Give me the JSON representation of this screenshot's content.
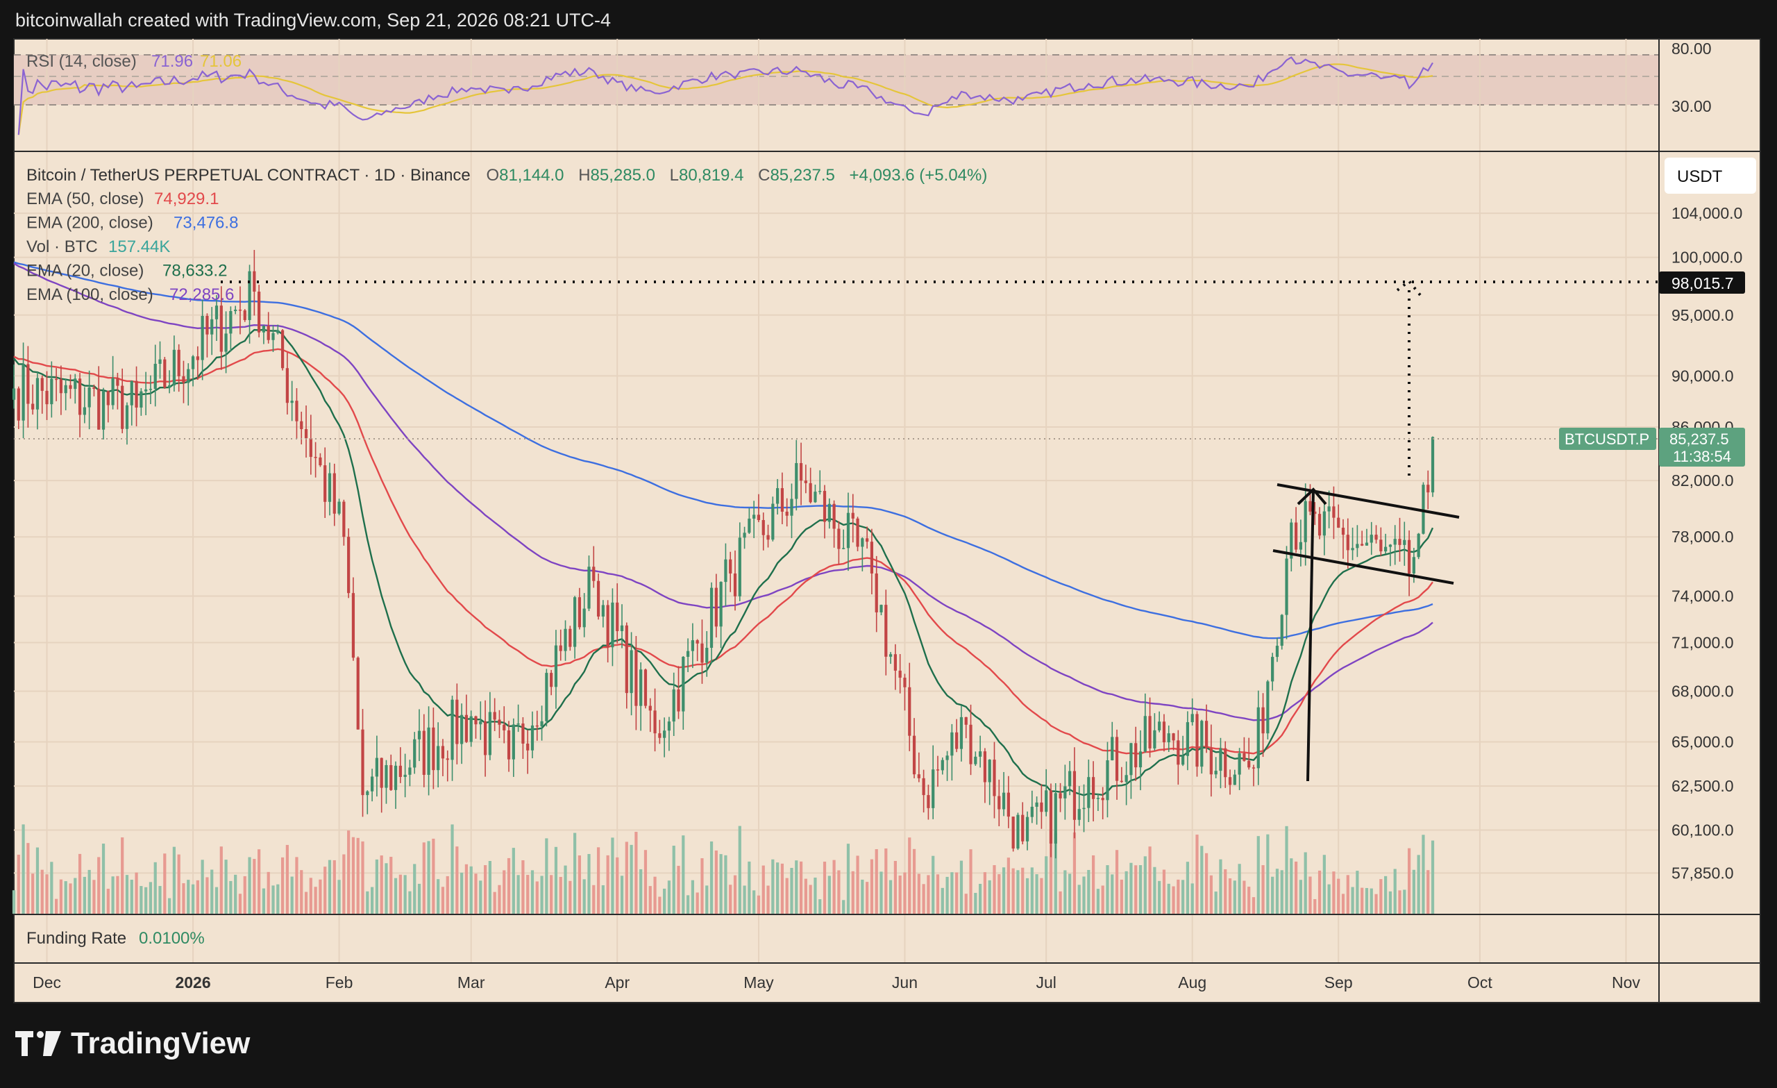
{
  "header": {
    "caption": "bitcoinwallah created with TradingView.com, Sep 21, 2026 08:21 UTC-4"
  },
  "colors": {
    "panel_bg": "#f2e3d1",
    "frame": "#141414",
    "up": "#3e8e6c",
    "down": "#c24545",
    "vol_up": "#8fc0a8",
    "vol_down": "#e79a91",
    "ema20": "#1e6f4c",
    "ema50": "#e2494b",
    "ema100": "#7e44c2",
    "ema200": "#3d6fe0",
    "rsi": "#8a63d2",
    "rsi_ma": "#e5c53a",
    "price_tag": "#5da27f"
  },
  "rsi_panel": {
    "label": "RSI (14, close)",
    "value": "71.96",
    "ma_value": "71.06",
    "levels": [
      "80.00",
      "30.00"
    ]
  },
  "main_panel": {
    "symbol_line": "Bitcoin / TetherUS PERPETUAL CONTRACT · 1D · Binance",
    "ohlc": [
      {
        "k": "O",
        "v": "81,144.0"
      },
      {
        "k": "H",
        "v": "85,285.0"
      },
      {
        "k": "L",
        "v": "80,819.4"
      },
      {
        "k": "C",
        "v": "85,237.5"
      }
    ],
    "change": "+4,093.6 (+5.04%)",
    "legend": [
      {
        "label": "EMA (50, close)",
        "value": "74,929.1",
        "color": "#e2494b"
      },
      {
        "label": "EMA (200, close)",
        "value": "73,476.8",
        "color": "#3d6fe0"
      },
      {
        "label": "Vol · BTC",
        "value": "157.44K",
        "color": "#3aa59b"
      },
      {
        "label": "EMA (20, close)",
        "value": "78,633.2",
        "color": "#1e6f4c"
      },
      {
        "label": "EMA (100, close)",
        "value": "72,285.6",
        "color": "#7e44c2"
      }
    ],
    "currency_button": "USDT",
    "price_axis_labels": [
      "104,000.0",
      "100,000.0",
      "95,000.0",
      "90,000.0",
      "86,000.0",
      "82,000.0",
      "78,000.0",
      "74,000.0",
      "71,000.0",
      "68,000.0",
      "65,000.0",
      "62,500.0",
      "60,100.0",
      "57,850.0"
    ],
    "target_label": "98,015.7",
    "symbol_tag": "BTCUSDT.P",
    "last_price": "85,237.5",
    "countdown": "11:38:54"
  },
  "funding_panel": {
    "label": "Funding Rate",
    "value": "0.0100%"
  },
  "time_axis": [
    {
      "label": "Dec",
      "bold": false
    },
    {
      "label": "2026",
      "bold": true
    },
    {
      "label": "Feb",
      "bold": false
    },
    {
      "label": "Mar",
      "bold": false
    },
    {
      "label": "Apr",
      "bold": false
    },
    {
      "label": "May",
      "bold": false
    },
    {
      "label": "Jun",
      "bold": false
    },
    {
      "label": "Jul",
      "bold": false
    },
    {
      "label": "Aug",
      "bold": false
    },
    {
      "label": "Sep",
      "bold": false
    },
    {
      "label": "Oct",
      "bold": false
    },
    {
      "label": "Nov",
      "bold": false
    }
  ],
  "brand": {
    "name": "TradingView"
  },
  "chart_data": {
    "type": "candlestick",
    "title": "Bitcoin / TetherUS PERPETUAL CONTRACT · 1D · Binance",
    "y_scale": "log",
    "ylim": [
      56000,
      108000
    ],
    "x_range": [
      "2025-11-24",
      "2026-11-08"
    ],
    "key_points": [
      {
        "date": "2025-11-24",
        "close": 89000
      },
      {
        "date": "2025-12-20",
        "close": 87500
      },
      {
        "date": "2026-01-14",
        "close": 97000
      },
      {
        "date": "2026-02-02",
        "close": 78000
      },
      {
        "date": "2026-02-06",
        "close": 62000
      },
      {
        "date": "2026-03-01",
        "close": 66500
      },
      {
        "date": "2026-03-09",
        "close": 64000
      },
      {
        "date": "2026-03-27",
        "close": 75000
      },
      {
        "date": "2026-04-09",
        "close": 65500
      },
      {
        "date": "2026-04-25",
        "close": 75500
      },
      {
        "date": "2026-05-10",
        "close": 82000
      },
      {
        "date": "2026-05-25",
        "close": 75500
      },
      {
        "date": "2026-06-05",
        "close": 62000
      },
      {
        "date": "2026-06-14",
        "close": 66000
      },
      {
        "date": "2026-06-26",
        "close": 59500
      },
      {
        "date": "2026-07-10",
        "close": 63000
      },
      {
        "date": "2026-07-27",
        "close": 65500
      },
      {
        "date": "2026-08-14",
        "close": 63500
      },
      {
        "date": "2026-08-22",
        "close": 79000
      },
      {
        "date": "2026-09-10",
        "close": 77000
      },
      {
        "date": "2026-09-16",
        "close": 75500
      },
      {
        "date": "2026-09-20",
        "close": 81144
      },
      {
        "date": "2026-09-21",
        "open": 81144.0,
        "high": 85285.0,
        "low": 80819.4,
        "close": 85237.5
      }
    ],
    "ema_last": {
      "ema20": 78633.2,
      "ema50": 74929.1,
      "ema100": 72285.6,
      "ema200": 73476.8
    },
    "target": 98015.7,
    "volume_last": "157.44K",
    "rsi": {
      "last": 71.96,
      "ma_last": 71.06,
      "levels": [
        80,
        30
      ]
    }
  }
}
